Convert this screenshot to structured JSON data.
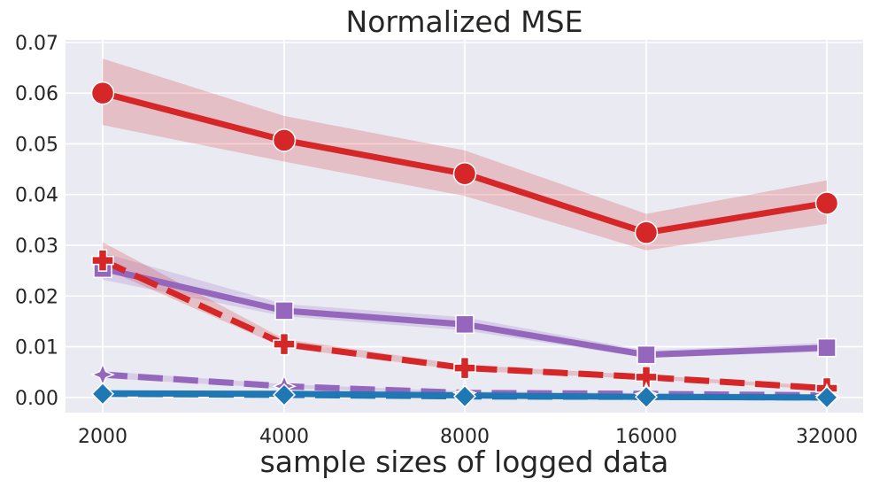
{
  "chart_data": {
    "type": "line",
    "title": "Normalized MSE",
    "xlabel": "sample sizes of logged data",
    "ylabel": "",
    "categories": [
      "2000",
      "4000",
      "8000",
      "16000",
      "32000"
    ],
    "ylim": [
      -0.003,
      0.0705
    ],
    "yticks": [
      "0.00",
      "0.01",
      "0.02",
      "0.03",
      "0.04",
      "0.05",
      "0.06",
      "0.07"
    ],
    "grid": true,
    "legend": "none",
    "background": "#eaeaf2",
    "series": [
      {
        "color": "#d62728",
        "line_style": "solid",
        "marker": "circle",
        "values": [
          0.06,
          0.0507,
          0.0441,
          0.0325,
          0.0383
        ],
        "ci_low": [
          0.0537,
          0.0465,
          0.0397,
          0.029,
          0.0342
        ],
        "ci_high": [
          0.0668,
          0.0555,
          0.0487,
          0.0362,
          0.0428
        ]
      },
      {
        "color": "#9467bd",
        "line_style": "solid",
        "marker": "square",
        "values": [
          0.0254,
          0.0171,
          0.0144,
          0.0084,
          0.0098
        ],
        "ci_low": [
          0.0232,
          0.016,
          0.0132,
          0.0078,
          0.009
        ],
        "ci_high": [
          0.0285,
          0.0184,
          0.0158,
          0.0092,
          0.0108
        ]
      },
      {
        "color": "#d62728",
        "line_style": "dashed",
        "marker": "plus",
        "values": [
          0.027,
          0.0105,
          0.0058,
          0.004,
          0.0018
        ],
        "ci_low": [
          0.0255,
          0.0098,
          0.0053,
          0.0036,
          0.0015
        ],
        "ci_high": [
          0.0306,
          0.0115,
          0.0064,
          0.0044,
          0.0022
        ]
      },
      {
        "color": "#9467bd",
        "line_style": "dashed",
        "marker": "star",
        "values": [
          0.0045,
          0.0022,
          0.0009,
          0.0007,
          0.0004
        ],
        "ci_low": [
          0.0038,
          0.0018,
          0.0007,
          0.0005,
          0.0003
        ],
        "ci_high": [
          0.0052,
          0.0026,
          0.0012,
          0.0009,
          0.0006
        ]
      },
      {
        "color": "#1f77b4",
        "line_style": "dashed",
        "marker": "diamond",
        "values": [
          0.0007,
          0.0005,
          0.0002,
          0.0001,
          0.0
        ],
        "ci_low": [
          0.0005,
          0.0003,
          0.0001,
          0.0,
          -0.0001
        ],
        "ci_high": [
          0.0009,
          0.0007,
          0.0004,
          0.0002,
          0.0001
        ]
      },
      {
        "color": "#1f77b4",
        "line_style": "solid",
        "marker": "none",
        "values": [
          0.0008,
          0.0007,
          0.0004,
          0.0001,
          0.0
        ],
        "ci_low": [
          0.0006,
          0.0005,
          0.0003,
          0.0,
          -0.0001
        ],
        "ci_high": [
          0.001,
          0.0009,
          0.0005,
          0.0002,
          0.0001
        ]
      }
    ]
  }
}
